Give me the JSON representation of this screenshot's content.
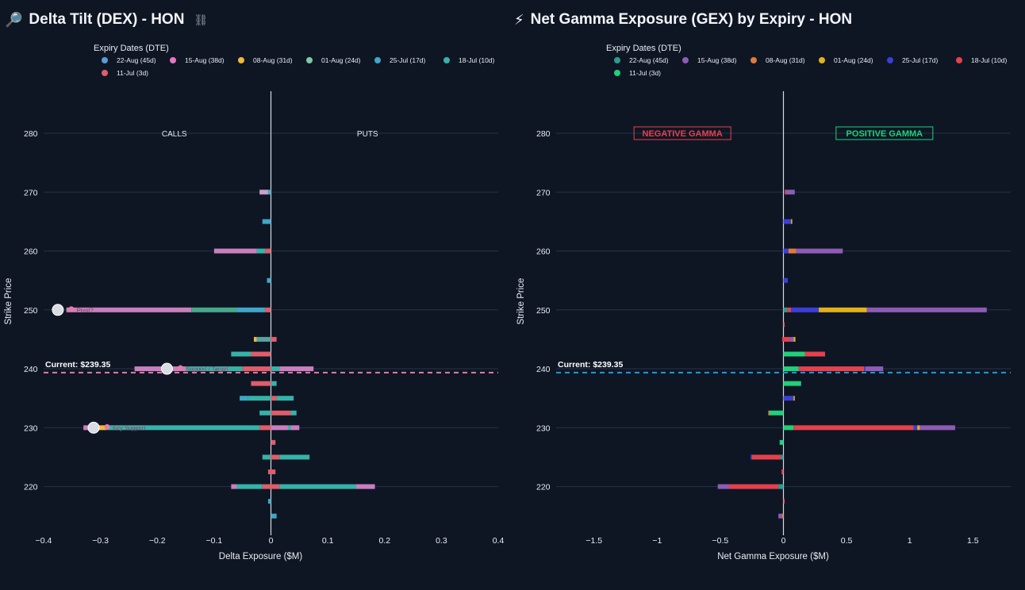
{
  "left_title": {
    "icon": "🔎",
    "text": "Delta Tilt (DEX) - HON",
    "link_icon": "link-icon"
  },
  "right_title": {
    "icon": "⚡",
    "text": "Net Gamma Exposure (GEX) by Expiry - HON"
  },
  "chart_data": [
    {
      "type": "bar",
      "orientation": "horizontal",
      "stacked": true,
      "title": "Delta Tilt (DEX) - HON",
      "xlabel": "Delta Exposure ($M)",
      "ylabel": "Strike Price",
      "xlim": [
        -0.4,
        0.4
      ],
      "ylim": [
        212,
        287
      ],
      "xticks": [
        -0.4,
        -0.3,
        -0.2,
        -0.1,
        0,
        0.1,
        0.2,
        0.3,
        0.4
      ],
      "xtick_labels": [
        "−0.4",
        "−0.3",
        "−0.2",
        "−0.1",
        "0",
        "0.1",
        "0.2",
        "0.3",
        "0.4"
      ],
      "yticks": [
        220,
        230,
        240,
        250,
        260,
        270,
        280
      ],
      "legend_title": "Expiry Dates (DTE)",
      "series": [
        {
          "name": "22-Aug (45d)",
          "color": "#5b9bd5"
        },
        {
          "name": "15-Aug (38d)",
          "color": "#e377c2"
        },
        {
          "name": "08-Aug (31d)",
          "color": "#f2b93b"
        },
        {
          "name": "01-Aug (24d)",
          "color": "#7fc9a3"
        },
        {
          "name": "25-Jul (17d)",
          "color": "#3fa7c8"
        },
        {
          "name": "18-Jul (10d)",
          "color": "#36b3a8"
        },
        {
          "name": "11-Jul (3d)",
          "color": "#e05d6a"
        }
      ],
      "bars": [
        {
          "strike": 270,
          "segments": [
            [
              "#c9a0c8",
              -0.02,
              -0.005
            ],
            [
              "#3fa7c8",
              -0.005,
              0
            ]
          ]
        },
        {
          "strike": 265,
          "segments": [
            [
              "#3fa7c8",
              -0.015,
              0
            ]
          ]
        },
        {
          "strike": 260,
          "segments": [
            [
              "#c97fbf",
              -0.1,
              -0.025
            ],
            [
              "#36b3a8",
              -0.025,
              -0.01
            ],
            [
              "#e05d6a",
              -0.01,
              0
            ]
          ]
        },
        {
          "strike": 255,
          "segments": [
            [
              "#3fa7c8",
              -0.007,
              0
            ]
          ]
        },
        {
          "strike": 250,
          "segments": [
            [
              "#c97fbf",
              -0.36,
              -0.14
            ],
            [
              "#4aa88a",
              -0.14,
              -0.06
            ],
            [
              "#3fa7c8",
              -0.06,
              -0.01
            ],
            [
              "#e05d6a",
              -0.01,
              0
            ]
          ]
        },
        {
          "strike": 245,
          "segments": [
            [
              "#f2b93b",
              -0.03,
              -0.025
            ],
            [
              "#5aa0a0",
              -0.025,
              0
            ],
            [
              "#e05d6a",
              0,
              0.01
            ]
          ]
        },
        {
          "strike": 242.5,
          "segments": [
            [
              "#36b3a8",
              -0.07,
              -0.035
            ],
            [
              "#e05d6a",
              -0.035,
              0
            ]
          ]
        },
        {
          "strike": 240,
          "segments": [
            [
              "#c97fbf",
              -0.24,
              -0.15
            ],
            [
              "#36b3a8",
              -0.15,
              -0.05
            ],
            [
              "#e05d6a",
              -0.05,
              0
            ],
            [
              "#36b3a8",
              0,
              0.015
            ],
            [
              "#c97fbf",
              0.015,
              0.075
            ]
          ]
        },
        {
          "strike": 237.5,
          "segments": [
            [
              "#e05d6a",
              -0.035,
              0
            ],
            [
              "#36b3a8",
              0,
              0.01
            ]
          ]
        },
        {
          "strike": 235,
          "segments": [
            [
              "#3fa7c8",
              -0.055,
              -0.04
            ],
            [
              "#36b3a8",
              -0.04,
              0
            ],
            [
              "#e05d6a",
              0,
              0.01
            ],
            [
              "#36b3a8",
              0.01,
              0.04
            ]
          ]
        },
        {
          "strike": 232.5,
          "segments": [
            [
              "#36b3a8",
              -0.02,
              0
            ],
            [
              "#e05d6a",
              0,
              0.035
            ],
            [
              "#36b3a8",
              0.035,
              0.045
            ]
          ]
        },
        {
          "strike": 230,
          "segments": [
            [
              "#c97fbf",
              -0.33,
              -0.31
            ],
            [
              "#f2b93b",
              -0.31,
              -0.29
            ],
            [
              "#36b3a8",
              -0.29,
              -0.02
            ],
            [
              "#e05d6a",
              -0.02,
              0
            ],
            [
              "#c97fbf",
              0,
              0.03
            ],
            [
              "#36b3a8",
              0.03,
              0.035
            ],
            [
              "#c97fbf",
              0.035,
              0.05
            ]
          ]
        },
        {
          "strike": 227.5,
          "segments": [
            [
              "#e05d6a",
              0,
              0.008
            ]
          ]
        },
        {
          "strike": 225,
          "segments": [
            [
              "#36b3a8",
              -0.015,
              0
            ],
            [
              "#e05d6a",
              0,
              0.015
            ],
            [
              "#36b3a8",
              0.015,
              0.068
            ]
          ]
        },
        {
          "strike": 222.5,
          "segments": [
            [
              "#e05d6a",
              -0.005,
              0.008
            ]
          ]
        },
        {
          "strike": 220,
          "segments": [
            [
              "#c97fbf",
              -0.07,
              -0.06
            ],
            [
              "#36b3a8",
              -0.06,
              -0.015
            ],
            [
              "#e05d6a",
              -0.015,
              0
            ],
            [
              "#e05d6a",
              0,
              0.015
            ],
            [
              "#36b3a8",
              0.015,
              0.15
            ],
            [
              "#c97fbf",
              0.15,
              0.183
            ]
          ]
        },
        {
          "strike": 217.5,
          "segments": [
            [
              "#3fa7c8",
              -0.005,
              0
            ]
          ]
        },
        {
          "strike": 215,
          "segments": [
            [
              "#3fa7c8",
              0,
              0.01
            ]
          ]
        }
      ],
      "annotations": [
        {
          "text": "CALLS",
          "x": -0.17,
          "y": 280
        },
        {
          "text": "PUTS",
          "x": 0.17,
          "y": 280
        },
        {
          "text": "Current: $239.35",
          "y": 239.35,
          "line_color": "#e87a9e"
        },
        {
          "text": "Pivot?",
          "x": -0.375,
          "y": 250
        },
        {
          "text": "Support / Target",
          "x": -0.183,
          "y": 240
        },
        {
          "text": "Key Support",
          "x": -0.312,
          "y": 230
        }
      ],
      "gridlines": true
    },
    {
      "type": "bar",
      "orientation": "horizontal",
      "stacked": true,
      "title": "Net Gamma Exposure (GEX) by Expiry - HON",
      "xlabel": "Net Gamma Exposure ($M)",
      "ylabel": "Strike Price",
      "xlim": [
        -1.8,
        1.8
      ],
      "ylim": [
        212,
        287
      ],
      "xticks": [
        -1.5,
        -1,
        -0.5,
        0,
        0.5,
        1,
        1.5
      ],
      "xtick_labels": [
        "−1.5",
        "−1",
        "−0.5",
        "0",
        "0.5",
        "1",
        "1.5"
      ],
      "yticks": [
        220,
        230,
        240,
        250,
        260,
        270,
        280
      ],
      "legend_title": "Expiry Dates (DTE)",
      "series": [
        {
          "name": "22-Aug (45d)",
          "color": "#2a9d8f"
        },
        {
          "name": "15-Aug (38d)",
          "color": "#8e5bb5"
        },
        {
          "name": "08-Aug (31d)",
          "color": "#e07b39"
        },
        {
          "name": "01-Aug (24d)",
          "color": "#e3b21b"
        },
        {
          "name": "25-Jul (17d)",
          "color": "#3b3fd8"
        },
        {
          "name": "18-Jul (10d)",
          "color": "#e5414c"
        },
        {
          "name": "11-Jul (3d)",
          "color": "#1fd17a"
        }
      ],
      "bars": [
        {
          "strike": 270,
          "segments": [
            [
              "#e5414c",
              0.01,
              0.02
            ],
            [
              "#8e5bb5",
              0.02,
              0.09
            ]
          ]
        },
        {
          "strike": 265,
          "segments": [
            [
              "#3b3fd8",
              0.0,
              0.06
            ],
            [
              "#e3b21b",
              0.06,
              0.07
            ]
          ]
        },
        {
          "strike": 260,
          "segments": [
            [
              "#3b3fd8",
              0.0,
              0.04
            ],
            [
              "#e07b39",
              0.04,
              0.1
            ],
            [
              "#8e5bb5",
              0.1,
              0.47
            ]
          ]
        },
        {
          "strike": 255,
          "segments": [
            [
              "#3b3fd8",
              0.0,
              0.035
            ]
          ]
        },
        {
          "strike": 250,
          "segments": [
            [
              "#2a9d8f",
              0.0,
              0.03
            ],
            [
              "#e5414c",
              0.03,
              0.06
            ],
            [
              "#3b3fd8",
              0.06,
              0.28
            ],
            [
              "#e3b21b",
              0.28,
              0.66
            ],
            [
              "#8e5bb5",
              0.66,
              1.61
            ]
          ]
        },
        {
          "strike": 247.5,
          "segments": [
            [
              "#e5414c",
              0.0,
              0.01
            ]
          ]
        },
        {
          "strike": 245,
          "segments": [
            [
              "#e5414c",
              -0.01,
              0.05
            ],
            [
              "#8e5bb5",
              0.05,
              0.08
            ],
            [
              "#e3b21b",
              0.08,
              0.095
            ]
          ]
        },
        {
          "strike": 242.5,
          "segments": [
            [
              "#1fd17a",
              0.0,
              0.17
            ],
            [
              "#e5414c",
              0.17,
              0.33
            ]
          ]
        },
        {
          "strike": 240,
          "segments": [
            [
              "#1fd17a",
              0.0,
              0.12
            ],
            [
              "#e5414c",
              0.12,
              0.64
            ],
            [
              "#3b3fd8",
              0.64,
              0.65
            ],
            [
              "#8e5bb5",
              0.65,
              0.79
            ]
          ]
        },
        {
          "strike": 237.5,
          "segments": [
            [
              "#1fd17a",
              0.0,
              0.14
            ]
          ]
        },
        {
          "strike": 235,
          "segments": [
            [
              "#3b3fd8",
              0.0,
              0.08
            ],
            [
              "#e3b21b",
              0.08,
              0.09
            ]
          ]
        },
        {
          "strike": 232.5,
          "segments": [
            [
              "#e07b39",
              -0.12,
              -0.11
            ],
            [
              "#1fd17a",
              -0.11,
              0.0
            ]
          ]
        },
        {
          "strike": 230,
          "segments": [
            [
              "#1fd17a",
              0.0,
              0.08
            ],
            [
              "#e5414c",
              0.08,
              1.03
            ],
            [
              "#3b3fd8",
              1.03,
              1.06
            ],
            [
              "#e3b21b",
              1.06,
              1.08
            ],
            [
              "#8e5bb5",
              1.08,
              1.36
            ]
          ]
        },
        {
          "strike": 227.5,
          "segments": [
            [
              "#1fd17a",
              -0.03,
              0.0
            ]
          ]
        },
        {
          "strike": 225,
          "segments": [
            [
              "#3b3fd8",
              -0.26,
              -0.25
            ],
            [
              "#e5414c",
              -0.25,
              -0.02
            ],
            [
              "#2a9d8f",
              -0.02,
              0.0
            ]
          ]
        },
        {
          "strike": 222.5,
          "segments": [
            [
              "#e5414c",
              -0.015,
              0.0
            ]
          ]
        },
        {
          "strike": 220,
          "segments": [
            [
              "#8e5bb5",
              -0.52,
              -0.43
            ],
            [
              "#e5414c",
              -0.43,
              -0.04
            ],
            [
              "#2a9d8f",
              -0.04,
              0.0
            ]
          ]
        },
        {
          "strike": 217.5,
          "segments": [
            [
              "#e5414c",
              0.0,
              0.01
            ]
          ]
        },
        {
          "strike": 215,
          "segments": [
            [
              "#8e5bb5",
              -0.04,
              -0.01
            ],
            [
              "#e07b39",
              -0.01,
              0.0
            ]
          ]
        }
      ],
      "annotations": [
        {
          "text": "NEGATIVE GAMMA",
          "x": -0.8,
          "y": 280,
          "color": "#e5414c"
        },
        {
          "text": "POSITIVE GAMMA",
          "x": 0.8,
          "y": 280,
          "color": "#1fd17a"
        },
        {
          "text": "Current: $239.35",
          "y": 239.35,
          "line_color": "#1e9be0"
        }
      ],
      "gridlines": true
    }
  ]
}
